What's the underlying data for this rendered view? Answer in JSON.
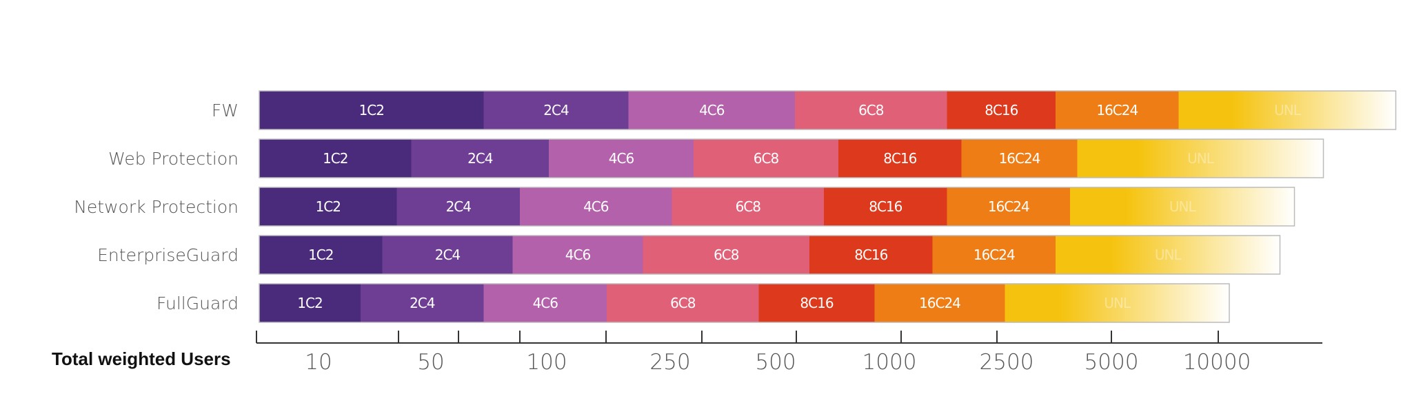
{
  "chart_data": {
    "type": "bar",
    "orientation": "horizontal",
    "stacked": true,
    "xlabel": "Total weighted Users",
    "x_ticks": [
      "10",
      "50",
      "100",
      "250",
      "500",
      "1000",
      "2500",
      "5000",
      "10000"
    ],
    "segment_labels": [
      "1C2",
      "2C4",
      "4C6",
      "6C8",
      "8C16",
      "16C24",
      "UNL"
    ],
    "colors": [
      "#4a2a7a",
      "#6e3d94",
      "#b461ab",
      "#e06078",
      "#dd3a1d",
      "#ee7d15",
      "#f5c30f"
    ],
    "categories": [
      "FW",
      "Web Protection",
      "Network Protection",
      "EnterpriseGuard",
      "FullGuard"
    ],
    "series": [
      {
        "name": "1C2",
        "values": [
          31,
          21,
          19,
          17,
          14
        ]
      },
      {
        "name": "2C4",
        "values": [
          20,
          19,
          17,
          18,
          17
        ]
      },
      {
        "name": "4C6",
        "values": [
          23,
          20,
          21,
          18,
          17
        ]
      },
      {
        "name": "6C8",
        "values": [
          21,
          20,
          21,
          23,
          21
        ]
      },
      {
        "name": "8C16",
        "values": [
          15,
          17,
          17,
          17,
          16
        ]
      },
      {
        "name": "16C24",
        "values": [
          17,
          16,
          17,
          17,
          18
        ]
      },
      {
        "name": "UNL",
        "values": [
          30,
          34,
          31,
          31,
          31
        ]
      }
    ]
  }
}
